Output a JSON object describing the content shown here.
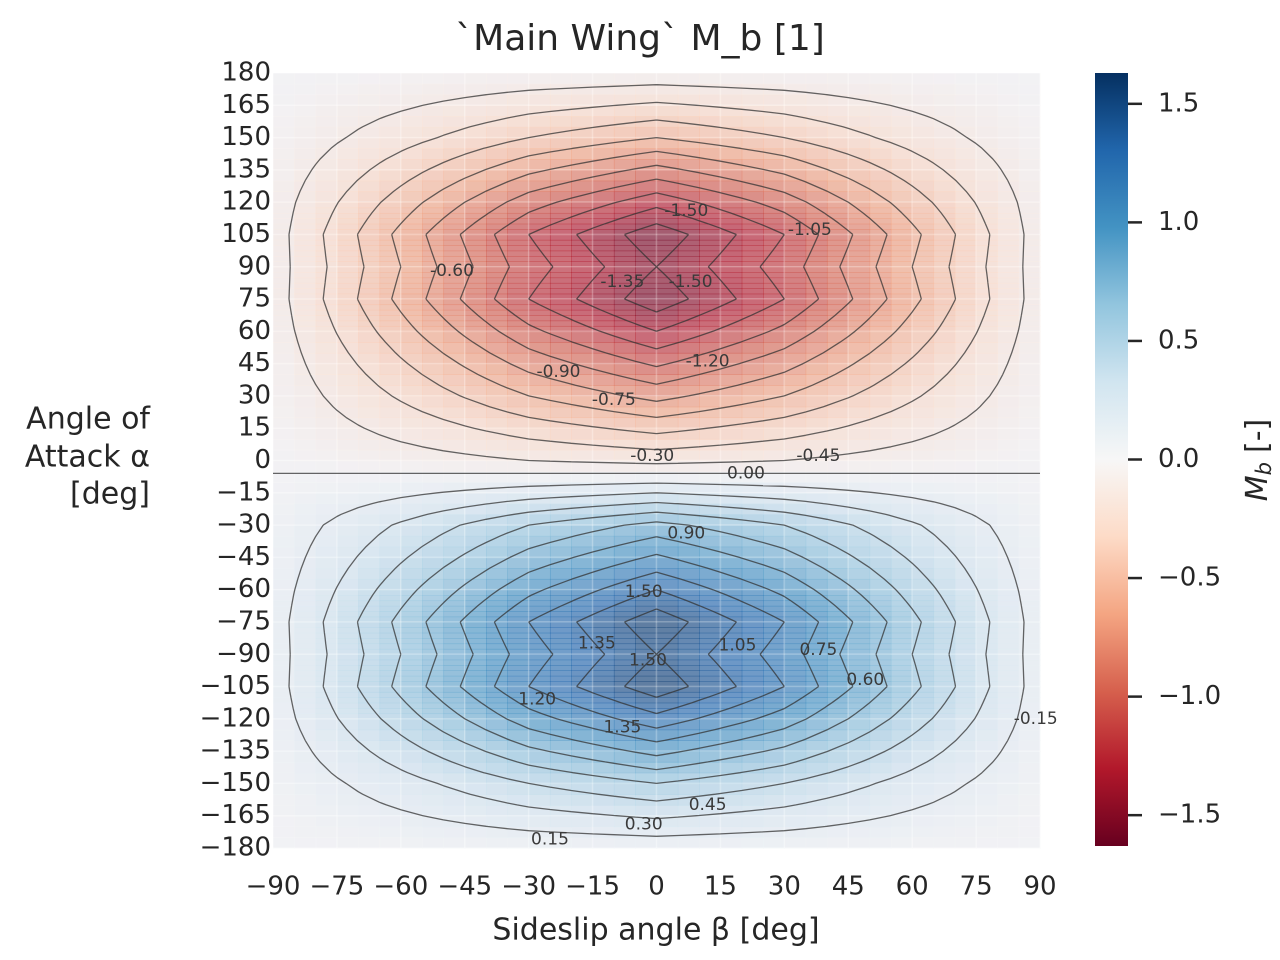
{
  "chart_data": {
    "type": "contour",
    "title": "`Main Wing` M_b [1]",
    "x_label": "Sideslip angle β [deg]",
    "y_label_lines": [
      "Angle of",
      "Attack α",
      "[deg]"
    ],
    "colorbar_label": {
      "symbol": "M",
      "subscript": "b",
      "unit": "[-]"
    },
    "x": [
      -90,
      -60,
      -30,
      0,
      30,
      60,
      90
    ],
    "y": [
      -180,
      -150,
      -120,
      -105,
      -90,
      -75,
      -60,
      -30,
      0,
      30,
      60,
      75,
      90,
      105,
      120,
      150,
      180
    ],
    "z": [
      [
        0.0,
        0.02,
        0.04,
        0.05,
        0.04,
        0.02,
        0.0
      ],
      [
        0.03,
        0.24,
        0.45,
        0.6,
        0.45,
        0.24,
        0.03
      ],
      [
        0.07,
        0.52,
        0.98,
        1.3,
        0.98,
        0.52,
        0.07
      ],
      [
        0.08,
        0.64,
        1.2,
        1.6,
        1.2,
        0.64,
        0.08
      ],
      [
        0.08,
        0.6,
        1.13,
        1.5,
        1.13,
        0.6,
        0.08
      ],
      [
        0.08,
        0.64,
        1.2,
        1.6,
        1.2,
        0.64,
        0.08
      ],
      [
        0.07,
        0.54,
        1.01,
        1.35,
        1.01,
        0.54,
        0.07
      ],
      [
        0.04,
        0.32,
        0.6,
        0.8,
        0.6,
        0.32,
        0.04
      ],
      [
        -0.01,
        -0.08,
        -0.15,
        -0.2,
        -0.15,
        -0.08,
        -0.01
      ],
      [
        -0.04,
        -0.32,
        -0.6,
        -0.8,
        -0.6,
        -0.32,
        -0.04
      ],
      [
        -0.07,
        -0.54,
        -1.01,
        -1.35,
        -1.01,
        -0.54,
        -0.07
      ],
      [
        -0.08,
        -0.64,
        -1.2,
        -1.6,
        -1.2,
        -0.64,
        -0.08
      ],
      [
        -0.08,
        -0.6,
        -1.13,
        -1.5,
        -1.13,
        -0.6,
        -0.08
      ],
      [
        -0.08,
        -0.64,
        -1.2,
        -1.6,
        -1.2,
        -0.64,
        -0.08
      ],
      [
        -0.07,
        -0.52,
        -0.98,
        -1.3,
        -0.98,
        -0.52,
        -0.07
      ],
      [
        -0.03,
        -0.24,
        -0.45,
        -0.6,
        -0.45,
        -0.24,
        -0.03
      ],
      [
        0.0,
        -0.02,
        -0.04,
        -0.05,
        -0.04,
        -0.02,
        0.0
      ]
    ],
    "levels": [
      -1.5,
      -1.35,
      -1.2,
      -1.05,
      -0.9,
      -0.75,
      -0.6,
      -0.45,
      -0.3,
      -0.15,
      0,
      0.15,
      0.3,
      0.45,
      0.6,
      0.75,
      0.9,
      1.05,
      1.2,
      1.35,
      1.5
    ],
    "contour_labels": [
      {
        "value": -1.5,
        "label": "-1.50",
        "x": 7,
        "y": 116
      },
      {
        "value": -1.05,
        "label": "-1.05",
        "x": 36,
        "y": 107
      },
      {
        "value": -0.6,
        "label": "-0.60",
        "x": -48,
        "y": 88
      },
      {
        "value": -1.35,
        "label": "-1.35",
        "x": -8,
        "y": 83
      },
      {
        "value": -1.5,
        "label": "-1.50",
        "x": 8,
        "y": 83
      },
      {
        "value": -1.2,
        "label": "-1.20",
        "x": 12,
        "y": 46
      },
      {
        "value": -0.9,
        "label": "-0.90",
        "x": -23,
        "y": 41
      },
      {
        "value": -0.75,
        "label": "-0.75",
        "x": -10,
        "y": 28
      },
      {
        "value": -0.3,
        "label": "-0.30",
        "x": -1,
        "y": 2
      },
      {
        "value": -0.45,
        "label": "-0.45",
        "x": 38,
        "y": 2
      },
      {
        "value": 0,
        "label": "0.00",
        "x": 21,
        "y": -6
      },
      {
        "value": 0.9,
        "label": "0.90",
        "x": 7,
        "y": -34
      },
      {
        "value": 1.5,
        "label": "1.50",
        "x": -3,
        "y": -61
      },
      {
        "value": 1.35,
        "label": "1.35",
        "x": -14,
        "y": -85
      },
      {
        "value": 1.5,
        "label": "1.50",
        "x": -2,
        "y": -93
      },
      {
        "value": 1.05,
        "label": "1.05",
        "x": 19,
        "y": -86
      },
      {
        "value": 0.75,
        "label": "0.75",
        "x": 38,
        "y": -88
      },
      {
        "value": 0.6,
        "label": "0.60",
        "x": 49,
        "y": -102
      },
      {
        "value": 1.2,
        "label": "1.20",
        "x": -28,
        "y": -111
      },
      {
        "value": 1.35,
        "label": "1.35",
        "x": -8,
        "y": -124
      },
      {
        "value": -0.15,
        "label": "-0.15",
        "x": 89,
        "y": -120
      },
      {
        "value": 0.45,
        "label": "0.45",
        "x": 12,
        "y": -160
      },
      {
        "value": 0.3,
        "label": "0.30",
        "x": -3,
        "y": -169
      },
      {
        "value": 0.15,
        "label": "0.15",
        "x": -25,
        "y": -176
      }
    ],
    "xlim": [
      -90,
      90
    ],
    "ylim": [
      -180,
      180
    ],
    "xticks": [
      {
        "value": -90,
        "label": "−90"
      },
      {
        "value": -75,
        "label": "−75"
      },
      {
        "value": -60,
        "label": "−60"
      },
      {
        "value": -45,
        "label": "−45"
      },
      {
        "value": -30,
        "label": "−30"
      },
      {
        "value": -15,
        "label": "−15"
      },
      0,
      15,
      30,
      45,
      60,
      75,
      90
    ],
    "yticks": [
      {
        "value": -180,
        "label": "−180"
      },
      {
        "value": -165,
        "label": "−165"
      },
      {
        "value": -150,
        "label": "−150"
      },
      {
        "value": -135,
        "label": "−135"
      },
      {
        "value": -120,
        "label": "−120"
      },
      {
        "value": -105,
        "label": "−105"
      },
      {
        "value": -90,
        "label": "−90"
      },
      {
        "value": -75,
        "label": "−75"
      },
      {
        "value": -60,
        "label": "−60"
      },
      {
        "value": -45,
        "label": "−45"
      },
      {
        "value": -30,
        "label": "−30"
      },
      {
        "value": -15,
        "label": "−15"
      },
      0,
      15,
      30,
      45,
      60,
      75,
      90,
      105,
      120,
      135,
      150,
      165,
      180
    ],
    "clim": [
      -1.63,
      1.63
    ],
    "cticks": [
      {
        "value": -1.5,
        "label": "−1.5"
      },
      {
        "value": -1,
        "label": "−1.0"
      },
      {
        "value": -0.5,
        "label": "−0.5"
      },
      {
        "value": 0,
        "label": "0.0"
      },
      {
        "value": 0.5,
        "label": "0.5"
      },
      {
        "value": 1,
        "label": "1.0"
      },
      1.5
    ],
    "colormap": [
      "#67001f",
      "#b2182b",
      "#d6604d",
      "#f4a582",
      "#fddbc7",
      "#f7f7f7",
      "#d1e5f0",
      "#92c5de",
      "#4393c3",
      "#2166ac",
      "#053061"
    ],
    "grid": true
  }
}
